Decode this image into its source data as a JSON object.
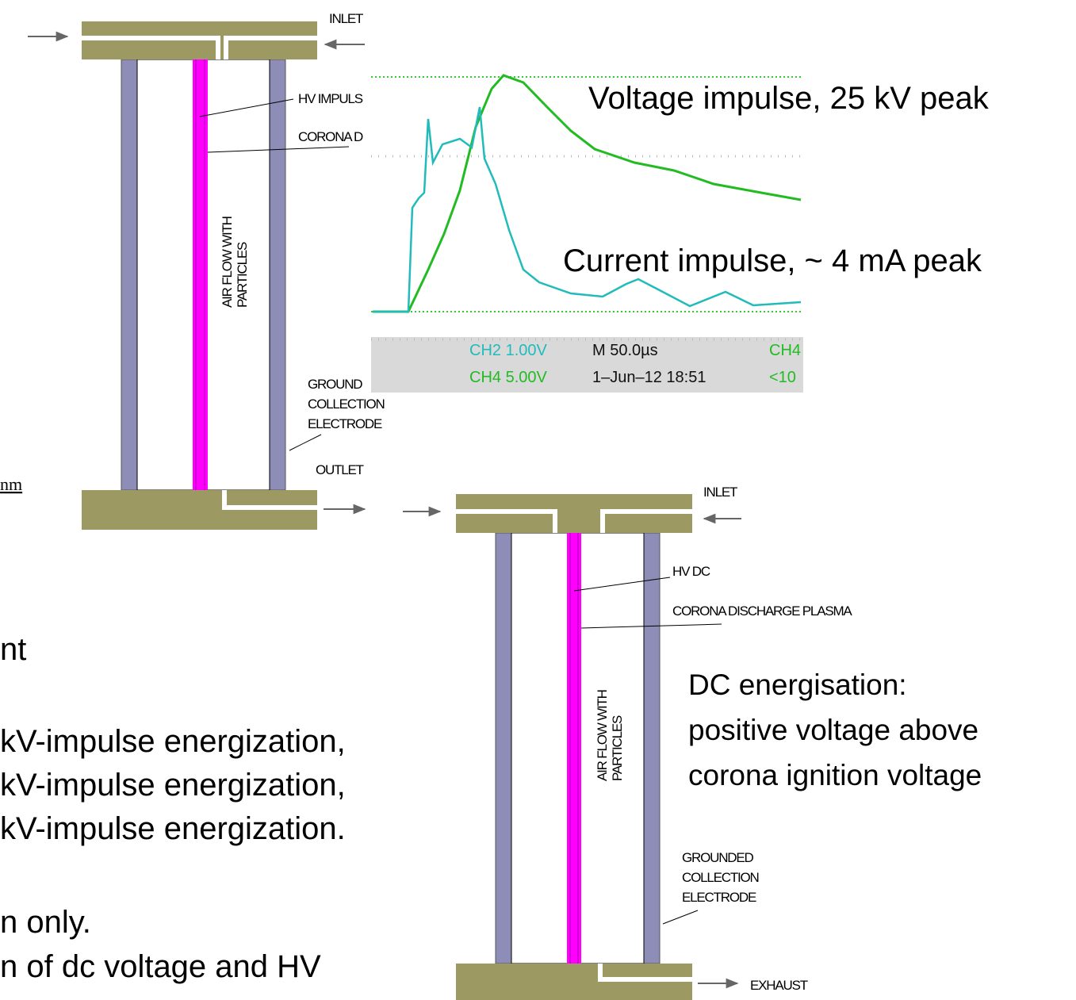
{
  "top_reactor": {
    "inlet": "INLET",
    "hv_label": "HV IMPULS",
    "corona_label": "CORONA D",
    "airflow": [
      "AIR FLOW WITH",
      "PARTICLES"
    ],
    "ground_label": [
      "GROUND",
      "COLLECTION",
      "ELECTRODE"
    ],
    "outlet": "OUTLET",
    "scale_fragment": "nm"
  },
  "scope": {
    "voltage_label": "Voltage impulse, 25 kV peak",
    "current_label": "Current impulse, ~ 4 mA peak",
    "status": [
      "CH2  1.00V",
      "M 50.0µs",
      "CH4",
      "CH4  5.00V",
      "1–Jun–12 18:51",
      "<10"
    ]
  },
  "left_text": [
    "nt",
    "kV-impulse energization,",
    "kV-impulse energization,",
    "kV-impulse energization.",
    "n only.",
    "n of dc voltage and HV"
  ],
  "bottom_reactor": {
    "inlet": "INLET",
    "hv_label": "HV DC",
    "corona_label": "CORONA DISCHARGE PLASMA",
    "airflow": [
      "AIR FLOW WITH",
      "PARTICLES"
    ],
    "ground_label": [
      "GROUNDED",
      "COLLECTION",
      "ELECTRODE"
    ],
    "exhaust": "EXHAUST"
  },
  "dc_note": [
    "DC energisation:",
    "positive voltage  above",
    "corona ignition voltage"
  ]
}
